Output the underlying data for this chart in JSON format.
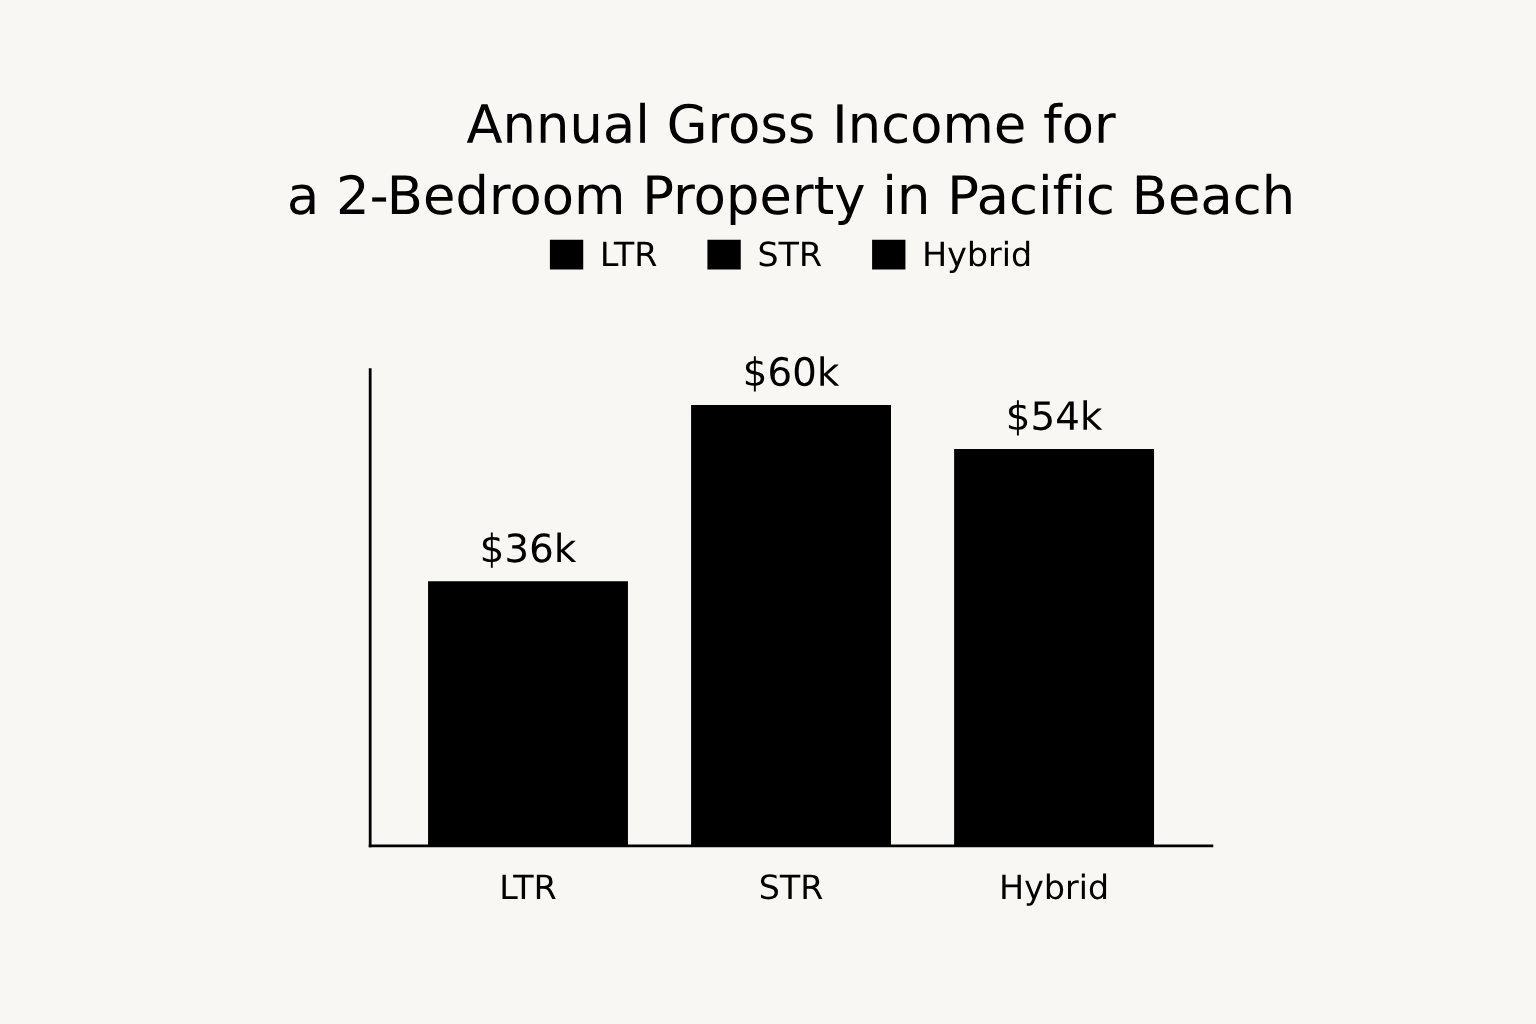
{
  "chart_data": {
    "type": "bar",
    "title": "Annual Gross Income for\na 2-Bedroom Property in Pacific Beach",
    "categories": [
      "LTR",
      "STR",
      "Hybrid"
    ],
    "series": [
      {
        "name": "LTR",
        "color": "#000000",
        "values": [
          36,
          null,
          null
        ],
        "value_labels": [
          "$36k",
          null,
          null
        ]
      },
      {
        "name": "STR",
        "color": "#000000",
        "values": [
          null,
          60,
          null
        ],
        "value_labels": [
          null,
          "$60k",
          null
        ]
      },
      {
        "name": "Hybrid",
        "color": "#000000",
        "values": [
          null,
          null,
          54
        ],
        "value_labels": [
          null,
          null,
          "$54k"
        ]
      }
    ],
    "legend": "top",
    "grid": false
  }
}
